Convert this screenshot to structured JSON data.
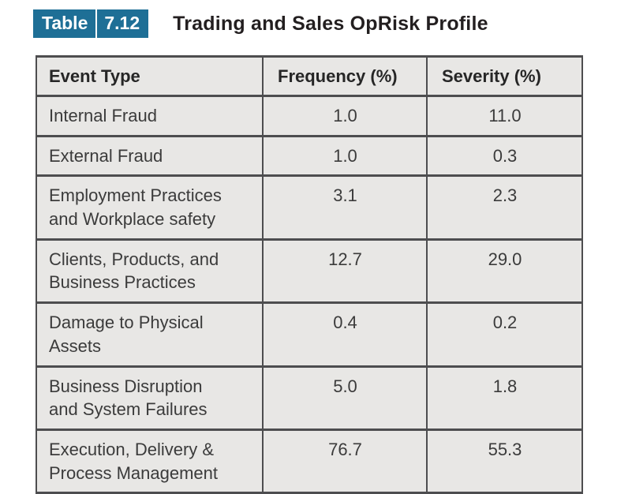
{
  "caption": {
    "badge_label": "Table",
    "badge_number": "7.12",
    "title": "Trading and Sales OpRisk Profile"
  },
  "table": {
    "columns": [
      "Event Type",
      "Frequency (%)",
      "Severity (%)"
    ],
    "rows": [
      {
        "event_lines": [
          "Internal Fraud"
        ],
        "frequency": "1.0",
        "severity": "11.0"
      },
      {
        "event_lines": [
          "External Fraud"
        ],
        "frequency": "1.0",
        "severity": "0.3"
      },
      {
        "event_lines": [
          "Employment Practices",
          "and Workplace safety"
        ],
        "frequency": "3.1",
        "severity": "2.3"
      },
      {
        "event_lines": [
          "Clients, Products, and",
          "Business Practices"
        ],
        "frequency": "12.7",
        "severity": "29.0"
      },
      {
        "event_lines": [
          "Damage to Physical",
          "Assets"
        ],
        "frequency": "0.4",
        "severity": "0.2"
      },
      {
        "event_lines": [
          "Business Disruption",
          "and System Failures"
        ],
        "frequency": "5.0",
        "severity": "1.8"
      },
      {
        "event_lines": [
          "Execution, Delivery &",
          "Process Management"
        ],
        "frequency": "76.7",
        "severity": "55.3"
      }
    ]
  },
  "colors": {
    "badge_bg": "#1e6f96",
    "cell_bg": "#e8e7e5",
    "border": "#4d4d4f",
    "text": "#3b3b3b",
    "header_text": "#262626",
    "title_text": "#231f20",
    "page_bg": "#ffffff"
  }
}
